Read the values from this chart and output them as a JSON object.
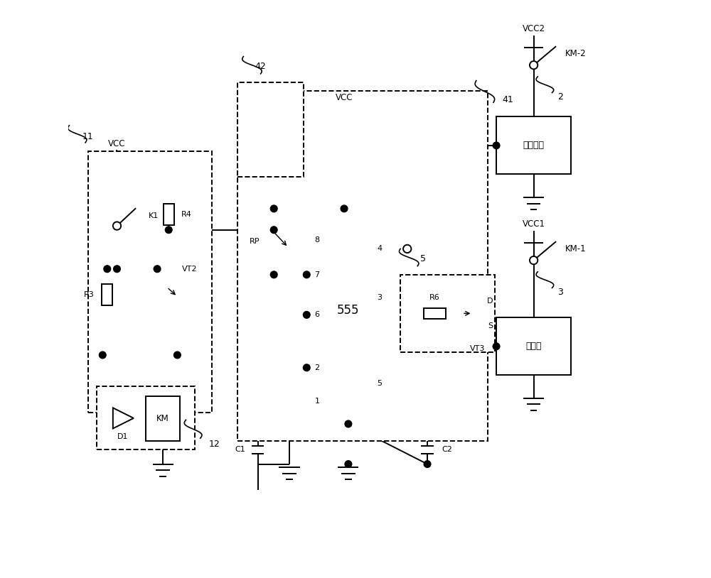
{
  "bg": "#ffffff",
  "lc": "#000000",
  "lw": 1.4,
  "fw": 10.0,
  "fh": 8.14,
  "dpi": 100,
  "labels": {
    "vcc": "VCC",
    "vcc1": "VCC1",
    "vcc2": "VCC2",
    "km1": "KM-1",
    "km2": "KM-2",
    "ext": "外部设备",
    "ana": "分析机",
    "km": "KM",
    "ic": "555",
    "rp": "RP",
    "r3": "R3",
    "r4": "R4",
    "r6": "R6",
    "c1": "C1",
    "c2": "C2",
    "d1": "D1",
    "vt2": "VT2",
    "vt3": "VT3",
    "k1": "K1",
    "n2": "2",
    "n3": "3",
    "n5": "5",
    "n11": "11",
    "n12": "12",
    "n41": "41",
    "n42": "42",
    "d_pin": "D",
    "s_pin": "S"
  }
}
